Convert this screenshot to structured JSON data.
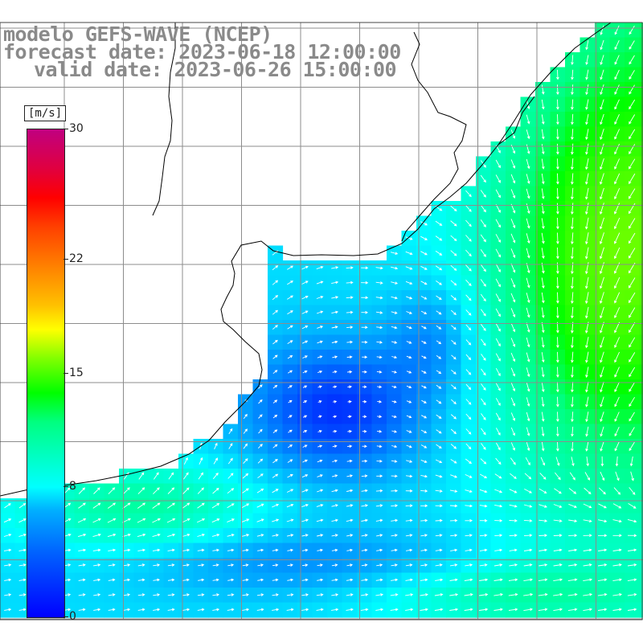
{
  "title": {
    "line1": "modelo GEFS-WAVE (NCEP)",
    "line2": "forecast date: 2023-06-18 12:00:00",
    "line3": "valid date: 2023-06-26 15:00:00"
  },
  "colorbar": {
    "unit": "[m/s]",
    "min": 0,
    "max": 30,
    "ticks": [
      {
        "label": "30",
        "value": 30
      },
      {
        "label": "22",
        "value": 22
      },
      {
        "label": "15",
        "value": 15
      },
      {
        "label": "8",
        "value": 8
      },
      {
        "label": "0",
        "value": 0
      }
    ]
  },
  "colors": {
    "grid": "#8c8c8c",
    "coast": "#000000",
    "title": "#8a8a8a",
    "arrow": "#ffffff"
  }
}
